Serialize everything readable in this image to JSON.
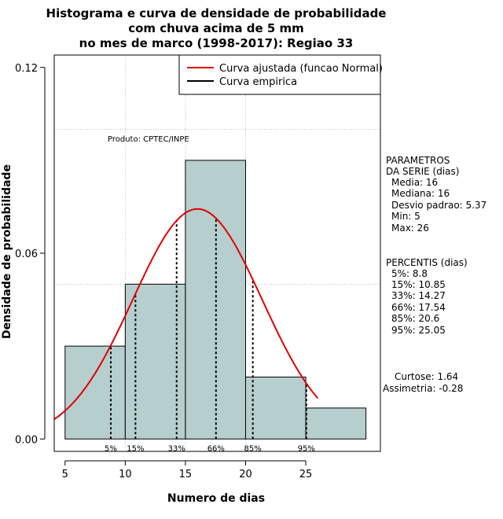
{
  "colors": {
    "bar_fill": "#b7cece",
    "normal_curve": "#e00000",
    "grid": "#bebebe",
    "axis": "#000000"
  },
  "chart_data": {
    "type": "bar",
    "title_lines": [
      "Histograma e curva de densidade de probabilidade",
      "com chuva acima de 5 mm",
      "no mes de marco (1998-2017): Regiao 33"
    ],
    "xlabel": "Numero de dias",
    "ylabel": "Densidade de probabilidade",
    "xlim": [
      4.1,
      31.2
    ],
    "ylim": [
      -0.004,
      0.124
    ],
    "x_ticks": [
      5,
      10,
      15,
      20,
      25
    ],
    "y_ticks": [
      0.0,
      0.06,
      0.12
    ],
    "y_tick_labels": [
      "0.00",
      "0.06",
      "0.12"
    ],
    "grid_x": [
      10,
      15,
      20
    ],
    "grid_y": [
      0.05,
      0.1
    ],
    "bins": [
      {
        "start": 5,
        "end": 10,
        "density": 0.03
      },
      {
        "start": 10,
        "end": 15,
        "density": 0.05
      },
      {
        "start": 15,
        "end": 20,
        "density": 0.09
      },
      {
        "start": 20,
        "end": 25,
        "density": 0.02
      },
      {
        "start": 25,
        "end": 30,
        "density": 0.01
      }
    ],
    "normal_curve": {
      "mean": 16,
      "sd": 5.37,
      "x_from": 4.1,
      "x_to": 26.0
    },
    "percentile_lines": [
      {
        "label": "5%",
        "x": 8.8
      },
      {
        "label": "15%",
        "x": 10.85
      },
      {
        "label": "33%",
        "x": 14.27
      },
      {
        "label": "66%",
        "x": 17.54
      },
      {
        "label": "85%",
        "x": 20.6
      },
      {
        "label": "95%",
        "x": 25.05
      }
    ],
    "legend": {
      "position": "top-right",
      "entries": [
        {
          "label": "Curva ajustada (funcao Normal)",
          "color": "#e00000"
        },
        {
          "label": "Curva empirica",
          "color": "#000000"
        }
      ]
    },
    "annotation": "Produto: CPTEC/INPE"
  },
  "side_panel": {
    "params_lines": [
      "PARAMETROS",
      "DA SERIE (dias)",
      "Media: 16",
      "Mediana: 16",
      "Desvio padrao: 5.37",
      "Min: 5",
      "Max: 26"
    ],
    "percentis_lines": [
      "PERCENTIS (dias)",
      "5%: 8.8",
      "15%: 10.85",
      "33%: 14.27",
      "66%: 17.54",
      "85%: 20.6",
      "95%: 25.05"
    ],
    "shape_lines": [
      "Curtose: 1.64",
      "Assimetria: -0.28"
    ]
  }
}
